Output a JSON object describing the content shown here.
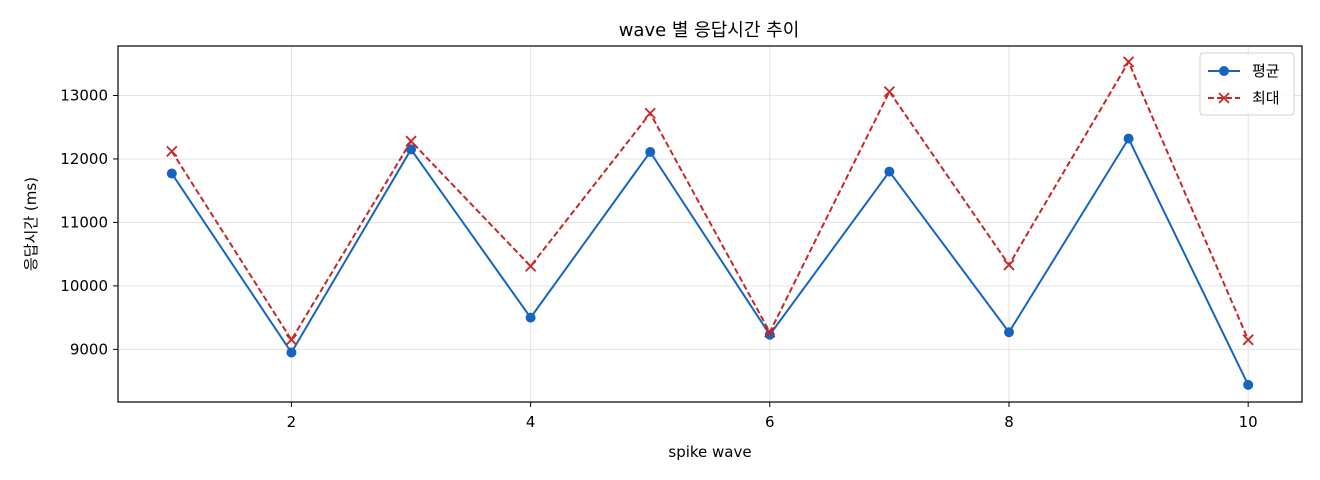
{
  "chart_data": {
    "type": "line",
    "title": "wave 별 응답시간 추이",
    "xlabel": "spike wave",
    "ylabel": "응답시간 (ms)",
    "x": [
      1,
      2,
      3,
      4,
      5,
      6,
      7,
      8,
      9,
      10
    ],
    "xticks": [
      2,
      4,
      6,
      8,
      10
    ],
    "xlim": [
      0.55,
      10.45
    ],
    "yticks": [
      9000,
      10000,
      11000,
      12000,
      13000
    ],
    "ylim": [
      8170,
      13780
    ],
    "grid": true,
    "legend_position": "top-right",
    "series": [
      {
        "name": "평균",
        "color": "#1565c0",
        "line_style": "solid",
        "marker": "circle",
        "values": [
          11770,
          8950,
          12150,
          9500,
          12110,
          9230,
          11800,
          9270,
          12320,
          8440
        ]
      },
      {
        "name": "최대",
        "color": "#c62828",
        "line_style": "dashed",
        "marker": "x",
        "values": [
          12120,
          9150,
          12280,
          10310,
          12720,
          9270,
          13060,
          10330,
          13530,
          9150
        ]
      }
    ]
  }
}
